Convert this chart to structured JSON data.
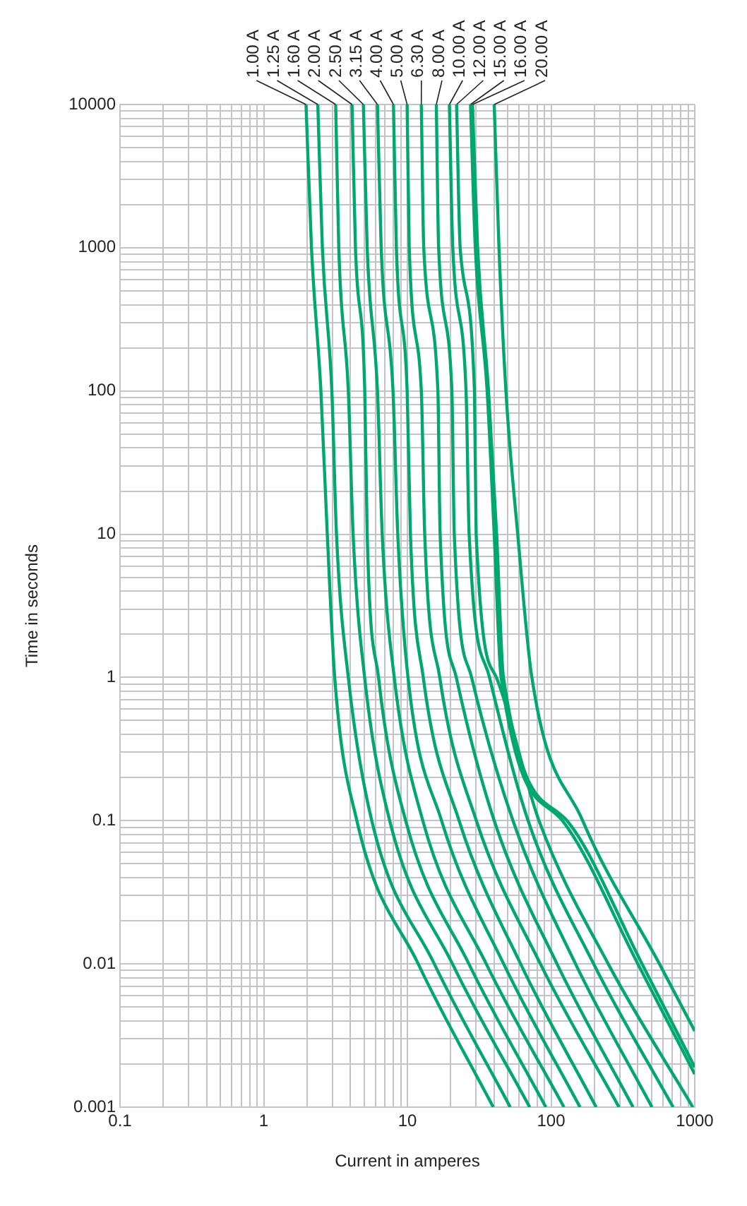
{
  "chart_data": {
    "type": "line",
    "xlabel": "Current in amperes",
    "ylabel": "Time in seconds",
    "log": "xy",
    "grid": true,
    "legend": false,
    "marker": "none",
    "line_style": "solid",
    "xlim": [
      0.1,
      1000
    ],
    "ylim": [
      0.001,
      10000
    ],
    "xticks": [
      0.1,
      {
        "value": 0.2,
        "label": null
      },
      {
        "value": 0.3,
        "label": null
      },
      {
        "value": 0.4,
        "label": null
      },
      {
        "value": 0.5,
        "label": null
      },
      {
        "value": 0.6,
        "label": null
      },
      {
        "value": 0.7,
        "label": null
      },
      {
        "value": 0.8,
        "label": null
      },
      {
        "value": 0.9,
        "label": null
      },
      1,
      {
        "value": 2,
        "label": null
      },
      {
        "value": 3,
        "label": null
      },
      {
        "value": 4,
        "label": null
      },
      {
        "value": 5,
        "label": null
      },
      {
        "value": 6,
        "label": null
      },
      {
        "value": 7,
        "label": null
      },
      {
        "value": 8,
        "label": null
      },
      {
        "value": 9,
        "label": null
      },
      10,
      {
        "value": 20,
        "label": null
      },
      {
        "value": 30,
        "label": null
      },
      {
        "value": 40,
        "label": null
      },
      {
        "value": 50,
        "label": null
      },
      {
        "value": 60,
        "label": null
      },
      {
        "value": 70,
        "label": null
      },
      {
        "value": 80,
        "label": null
      },
      {
        "value": 90,
        "label": null
      },
      100,
      {
        "value": 200,
        "label": null
      },
      {
        "value": 300,
        "label": null
      },
      {
        "value": 400,
        "label": null
      },
      {
        "value": 500,
        "label": null
      },
      {
        "value": 600,
        "label": null
      },
      {
        "value": 700,
        "label": null
      },
      {
        "value": 800,
        "label": null
      },
      {
        "value": 900,
        "label": null
      },
      1000
    ],
    "yticks": [
      0.001,
      {
        "value": 0.002,
        "label": null
      },
      {
        "value": 0.003,
        "label": null
      },
      {
        "value": 0.004,
        "label": null
      },
      {
        "value": 0.005,
        "label": null
      },
      {
        "value": 0.006,
        "label": null
      },
      {
        "value": 0.007,
        "label": null
      },
      {
        "value": 0.008,
        "label": null
      },
      {
        "value": 0.009,
        "label": null
      },
      0.01,
      {
        "value": 0.02,
        "label": null
      },
      {
        "value": 0.03,
        "label": null
      },
      {
        "value": 0.04,
        "label": null
      },
      {
        "value": 0.05,
        "label": null
      },
      {
        "value": 0.06,
        "label": null
      },
      {
        "value": 0.07,
        "label": null
      },
      {
        "value": 0.08,
        "label": null
      },
      {
        "value": 0.09,
        "label": null
      },
      0.1,
      {
        "value": 0.2,
        "label": null
      },
      {
        "value": 0.3,
        "label": null
      },
      {
        "value": 0.4,
        "label": null
      },
      {
        "value": 0.5,
        "label": null
      },
      {
        "value": 0.6,
        "label": null
      },
      {
        "value": 0.7,
        "label": null
      },
      {
        "value": 0.8,
        "label": null
      },
      {
        "value": 0.9,
        "label": null
      },
      1,
      {
        "value": 2,
        "label": null
      },
      {
        "value": 3,
        "label": null
      },
      {
        "value": 4,
        "label": null
      },
      {
        "value": 5,
        "label": null
      },
      {
        "value": 6,
        "label": null
      },
      {
        "value": 7,
        "label": null
      },
      {
        "value": 8,
        "label": null
      },
      {
        "value": 9,
        "label": null
      },
      10,
      {
        "value": 20,
        "label": null
      },
      {
        "value": 30,
        "label": null
      },
      {
        "value": 40,
        "label": null
      },
      {
        "value": 50,
        "label": null
      },
      {
        "value": 60,
        "label": null
      },
      {
        "value": 70,
        "label": null
      },
      {
        "value": 80,
        "label": null
      },
      {
        "value": 90,
        "label": null
      },
      100,
      {
        "value": 200,
        "label": null
      },
      {
        "value": 300,
        "label": null
      },
      {
        "value": 400,
        "label": null
      },
      {
        "value": 500,
        "label": null
      },
      {
        "value": 600,
        "label": null
      },
      {
        "value": 700,
        "label": null
      },
      {
        "value": 800,
        "label": null
      },
      {
        "value": 900,
        "label": null
      },
      1000,
      {
        "value": 2000,
        "label": null
      },
      {
        "value": 3000,
        "label": null
      },
      {
        "value": 4000,
        "label": null
      },
      {
        "value": 5000,
        "label": null
      },
      {
        "value": 6000,
        "label": null
      },
      {
        "value": 7000,
        "label": null
      },
      {
        "value": 8000,
        "label": null
      },
      {
        "value": 9000,
        "label": null
      },
      10000
    ],
    "series": [
      {
        "name": "1.00 A",
        "color": "#00a870",
        "x": [
          1.97,
          2.15,
          2.5,
          2.77,
          3.12,
          4.45,
          11.9,
          39.6
        ],
        "values": [
          10000,
          1000,
          100,
          10,
          1,
          0.1,
          0.01,
          0.001
        ]
      },
      {
        "name": "1.25 A",
        "color": "#00a870",
        "x": [
          2.38,
          2.56,
          2.98,
          3.21,
          3.88,
          5.65,
          15.4,
          52
        ],
        "values": [
          10000,
          1000,
          100,
          10,
          1,
          0.1,
          0.01,
          0.001
        ]
      },
      {
        "name": "1.60 A",
        "color": "#00a870",
        "x": [
          3.17,
          3.33,
          3.88,
          4.19,
          5.04,
          7.53,
          20.6,
          71
        ],
        "values": [
          10000,
          1000,
          100,
          10,
          1,
          0.1,
          0.01,
          0.001
        ]
      },
      {
        "name": "2.00 A",
        "color": "#00a870",
        "x": [
          4.12,
          4.35,
          5.05,
          5.25,
          6.3,
          9.73,
          26.8,
          92
        ],
        "values": [
          10000,
          1000,
          100,
          10,
          1,
          0.1,
          0.01,
          0.001
        ]
      },
      {
        "name": "2.50 A",
        "color": "#00a870",
        "x": [
          4.94,
          5.25,
          6.19,
          6.68,
          8.1,
          12.8,
          35.4,
          123
        ],
        "values": [
          10000,
          1000,
          100,
          10,
          1,
          0.1,
          0.01,
          0.001
        ]
      },
      {
        "name": "3.15 A",
        "color": "#00a870",
        "x": [
          6.19,
          6.57,
          7.94,
          8.57,
          10.1,
          17.3,
          46.8,
          159
        ],
        "values": [
          10000,
          1000,
          100,
          10,
          1,
          0.1,
          0.01,
          0.001
        ]
      },
      {
        "name": "4.00 A",
        "color": "#00a870",
        "x": [
          8.0,
          8.38,
          9.96,
          10.5,
          12.9,
          22.9,
          61.4,
          206
        ],
        "values": [
          10000,
          1000,
          100,
          10,
          1,
          0.1,
          0.01,
          0.001
        ]
      },
      {
        "name": "5.00 A",
        "color": "#00a870",
        "x": [
          9.96,
          10.3,
          12.5,
          13.2,
          16.8,
          30.2,
          84.3,
          297
        ],
        "values": [
          10000,
          1000,
          100,
          10,
          1,
          0.1,
          0.01,
          0.001
        ]
      },
      {
        "name": "6.30 A",
        "color": "#00a870",
        "x": [
          12.5,
          13.0,
          16.3,
          16.9,
          21.9,
          40.2,
          110,
          372
        ],
        "values": [
          10000,
          1000,
          100,
          10,
          1,
          0.1,
          0.01,
          0.001
        ]
      },
      {
        "name": "8.00 A",
        "color": "#00a870",
        "x": [
          15.9,
          16.5,
          20.4,
          21.2,
          28.0,
          54.3,
          148,
          504
        ],
        "values": [
          10000,
          1000,
          100,
          10,
          1,
          0.1,
          0.01,
          0.001
        ]
      },
      {
        "name": "10.00 A",
        "color": "#00a870",
        "x": [
          19.6,
          20.7,
          25.6,
          26.9,
          37.3,
          69.2,
          198,
          707
        ],
        "values": [
          10000,
          1000,
          100,
          10,
          1,
          0.1,
          0.01,
          0.001
        ]
      },
      {
        "name": "12.00 A",
        "color": "#00a870",
        "x": [
          22,
          23.3,
          29.3,
          30.1,
          41.6,
          82.4,
          250,
          970
        ],
        "values": [
          10000,
          1000,
          100,
          10,
          1,
          0.1,
          0.01,
          0.001
        ]
      },
      {
        "name": "15.00 A",
        "color": "#00a870",
        "x": [
          27.5,
          29.7,
          35.9,
          40.2,
          44.9,
          120,
          402,
          1000
        ],
        "values": [
          10000,
          1000,
          100,
          10,
          1,
          0.1,
          0.01,
          0.0017
        ]
      },
      {
        "name": "16.00 A",
        "color": "#00a870",
        "x": [
          28.4,
          30.8,
          36.7,
          41.8,
          46.6,
          129,
          430,
          1000
        ],
        "values": [
          10000,
          1000,
          100,
          10,
          1,
          0.1,
          0.01,
          0.0019
        ]
      },
      {
        "name": "20.00 A",
        "color": "#00a870",
        "x": [
          40.2,
          43.4,
          48.5,
          58.6,
          73.5,
          166,
          568,
          1000
        ],
        "values": [
          10000,
          1000,
          100,
          10,
          1,
          0.1,
          0.01,
          0.0034
        ]
      }
    ]
  }
}
